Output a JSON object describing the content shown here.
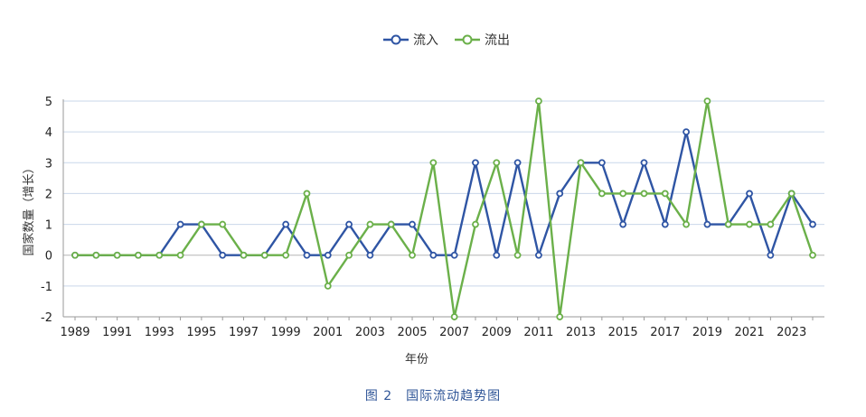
{
  "chart_data": {
    "type": "line",
    "title": "",
    "caption": "图 2　国际流动趋势图",
    "xlabel": "年份",
    "ylabel": "国家数量（增长）",
    "ylim": [
      -2,
      5
    ],
    "yticks": [
      -2,
      -1,
      0,
      1,
      2,
      3,
      4,
      5
    ],
    "x": [
      1989,
      1990,
      1991,
      1992,
      1993,
      1994,
      1995,
      1996,
      1997,
      1998,
      1999,
      2000,
      2001,
      2002,
      2003,
      2004,
      2005,
      2006,
      2007,
      2008,
      2009,
      2010,
      2011,
      2012,
      2013,
      2014,
      2015,
      2016,
      2017,
      2018,
      2019,
      2020,
      2021,
      2022,
      2023,
      2024
    ],
    "xticks": [
      1989,
      1991,
      1993,
      1995,
      1997,
      1999,
      2001,
      2003,
      2005,
      2007,
      2009,
      2011,
      2013,
      2015,
      2017,
      2019,
      2021,
      2023
    ],
    "grid": true,
    "legend_position": "top-center",
    "series": [
      {
        "name": "流入",
        "color": "#2f55a4",
        "values": [
          0,
          0,
          0,
          0,
          0,
          1,
          1,
          0,
          0,
          0,
          1,
          0,
          0,
          1,
          0,
          1,
          1,
          0,
          0,
          3,
          0,
          3,
          0,
          2,
          3,
          3,
          1,
          3,
          1,
          4,
          1,
          1,
          2,
          0,
          2,
          1
        ]
      },
      {
        "name": "流出",
        "color": "#6bb04a",
        "values": [
          0,
          0,
          0,
          0,
          0,
          0,
          1,
          1,
          0,
          0,
          0,
          2,
          -1,
          0,
          1,
          1,
          0,
          3,
          -2,
          1,
          3,
          0,
          5,
          -2,
          3,
          2,
          2,
          2,
          2,
          1,
          5,
          1,
          1,
          1,
          2,
          0
        ]
      }
    ]
  }
}
